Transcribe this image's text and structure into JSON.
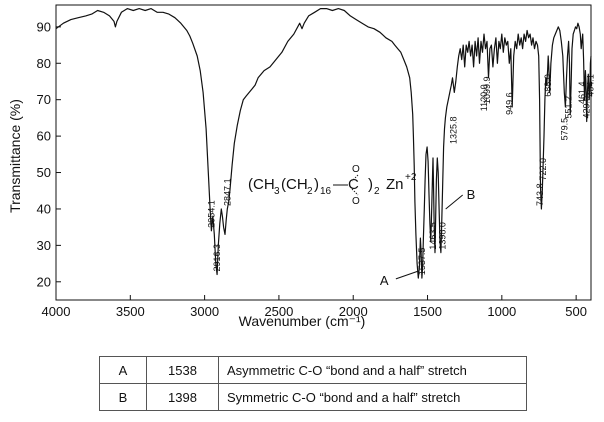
{
  "chart_data": {
    "type": "line",
    "xlabel": "Wavenumber (cm⁻¹)",
    "ylabel": "Transmittance (%)",
    "xlim": [
      4000,
      400
    ],
    "ylim": [
      15,
      96
    ],
    "x_ticks": [
      4000,
      3500,
      3000,
      2500,
      2000,
      1500,
      1000,
      500
    ],
    "y_ticks": [
      20,
      30,
      40,
      50,
      60,
      70,
      80,
      90
    ],
    "grid": false,
    "series": [
      {
        "x": [
          4000,
          3950,
          3900,
          3850,
          3800,
          3760,
          3720,
          3680,
          3640,
          3610,
          3600,
          3590,
          3560,
          3520,
          3480,
          3440,
          3400,
          3360,
          3320,
          3280,
          3240,
          3200,
          3160,
          3120,
          3100,
          3080,
          3050,
          3030,
          3010,
          2990,
          2975,
          2962,
          2954,
          2945,
          2935,
          2925,
          2916,
          2908,
          2898,
          2888,
          2880,
          2872,
          2863,
          2855,
          2847,
          2838,
          2830,
          2815,
          2800,
          2780,
          2760,
          2740,
          2720,
          2700,
          2680,
          2660,
          2640,
          2600,
          2560,
          2520,
          2480,
          2440,
          2400,
          2360,
          2345,
          2330,
          2300,
          2260,
          2220,
          2180,
          2140,
          2100,
          2060,
          2020,
          1980,
          1940,
          1900,
          1860,
          1820,
          1780,
          1740,
          1720,
          1700,
          1680,
          1660,
          1640,
          1620,
          1610,
          1600,
          1595,
          1590,
          1585,
          1578,
          1570,
          1562,
          1555,
          1548,
          1543,
          1538,
          1533,
          1528,
          1522,
          1516,
          1510,
          1503,
          1496,
          1490,
          1484,
          1478,
          1472,
          1466,
          1463,
          1460,
          1455,
          1450,
          1445,
          1440,
          1434,
          1428,
          1422,
          1416,
          1410,
          1404,
          1398,
          1392,
          1386,
          1380,
          1370,
          1360,
          1350,
          1340,
          1332,
          1326,
          1320,
          1310,
          1300,
          1290,
          1280,
          1270,
          1260,
          1250,
          1240,
          1230,
          1220,
          1210,
          1200,
          1190,
          1180,
          1170,
          1160,
          1150,
          1140,
          1130,
          1120,
          1110,
          1100,
          1090,
          1080,
          1070,
          1060,
          1050,
          1040,
          1030,
          1020,
          1010,
          1000,
          990,
          980,
          970,
          960,
          950,
          940,
          930,
          920,
          910,
          900,
          890,
          880,
          870,
          860,
          850,
          840,
          830,
          820,
          810,
          800,
          790,
          780,
          770,
          760,
          752,
          746,
          740,
          734,
          728,
          722,
          716,
          710,
          704,
          698,
          692,
          688,
          684,
          678,
          670,
          660,
          650,
          640,
          630,
          620,
          610,
          600,
          590,
          580,
          572,
          565,
          558,
          551,
          545,
          540,
          534,
          528,
          520,
          512,
          504,
          496,
          488,
          480,
          472,
          466,
          461,
          456,
          450,
          444,
          438,
          434,
          429,
          424,
          418,
          412,
          406,
          404,
          400
        ],
        "y": [
          89.5,
          91,
          92,
          92.5,
          93,
          93.5,
          94.5,
          94,
          93,
          91.5,
          90,
          91.5,
          94,
          95,
          94.5,
          95,
          94.5,
          95,
          94,
          94,
          93.5,
          92.5,
          91,
          89,
          87.5,
          85.5,
          82,
          78,
          72,
          62,
          50,
          39,
          34,
          38,
          33,
          25,
          22,
          30,
          36,
          40,
          38,
          35,
          33,
          37,
          40,
          42,
          45,
          52,
          58,
          63,
          67,
          70,
          71,
          72,
          73,
          74,
          76,
          78,
          79,
          81,
          83,
          86,
          88,
          91,
          89.5,
          91,
          93,
          94,
          95,
          95,
          94.5,
          95,
          94.5,
          93,
          92,
          91,
          90,
          89.5,
          88.5,
          87,
          86,
          85,
          84,
          83,
          81,
          79,
          76,
          72,
          66,
          60,
          52,
          42,
          33,
          25,
          21,
          24,
          32,
          28,
          21,
          24,
          32,
          40,
          48,
          55,
          57,
          53,
          44,
          36,
          31,
          40,
          50,
          54,
          47,
          35,
          28,
          38,
          48,
          54,
          50,
          40,
          31,
          28,
          37,
          47,
          57,
          62,
          65,
          68,
          70,
          72,
          74,
          76,
          74,
          72,
          75,
          79,
          82,
          84,
          81,
          85,
          79,
          85,
          83,
          86,
          82,
          85,
          79,
          86,
          82,
          87,
          80,
          86,
          83,
          88,
          84,
          86,
          76,
          84,
          85,
          79,
          84,
          87,
          80,
          86,
          84,
          88,
          83,
          87,
          85,
          86,
          80,
          84,
          68,
          82,
          86,
          84,
          88,
          85,
          87,
          84,
          88,
          86,
          89,
          87,
          88,
          85,
          87,
          84,
          86,
          85,
          82,
          70,
          46,
          40,
          45,
          52,
          60,
          70,
          76,
          74,
          78,
          82,
          79,
          72,
          80,
          85,
          87,
          88,
          89,
          90,
          89,
          86,
          82,
          72,
          68,
          76,
          82,
          86,
          80,
          66,
          74,
          84,
          88,
          89,
          90,
          89.5,
          91,
          90,
          88,
          84,
          86,
          88,
          81,
          70,
          78,
          75,
          64,
          72,
          77,
          70,
          75,
          80,
          82
        ]
      }
    ],
    "peak_labels": [
      "2954.1",
      "2916.3",
      "2847.1",
      "1537.5",
      "1463.5",
      "1398.0",
      "1325.8",
      "1120.0",
      "1099.9",
      "949.6",
      "743.8",
      "722.0",
      "688.0",
      "579.5",
      "551.2",
      "461.4",
      "429.0",
      "404.1"
    ],
    "peak_positions": [
      {
        "x": 2954.1,
        "y": 34
      },
      {
        "x": 2916.3,
        "y": 22
      },
      {
        "x": 2847.1,
        "y": 40
      },
      {
        "x": 1537.5,
        "y": 21
      },
      {
        "x": 1463.5,
        "y": 28
      },
      {
        "x": 1398.0,
        "y": 28
      },
      {
        "x": 1325.8,
        "y": 57
      },
      {
        "x": 1120.0,
        "y": 66
      },
      {
        "x": 1099.9,
        "y": 68
      },
      {
        "x": 949.6,
        "y": 65
      },
      {
        "x": 743.8,
        "y": 40
      },
      {
        "x": 722.0,
        "y": 47
      },
      {
        "x": 688.0,
        "y": 70
      },
      {
        "x": 579.5,
        "y": 58
      },
      {
        "x": 551.2,
        "y": 64
      },
      {
        "x": 461.4,
        "y": 68
      },
      {
        "x": 429.0,
        "y": 64
      },
      {
        "x": 404.1,
        "y": 70
      }
    ],
    "annotations": [
      {
        "label": "A",
        "x": 1538,
        "y": 21
      },
      {
        "label": "B",
        "x": 1398,
        "y": 28
      }
    ],
    "formula": {
      "p1": "(CH",
      "s1": "3",
      "p2": "(CH",
      "s2": "2",
      "p3": ")",
      "s3": "16",
      "p4": "—C",
      "o_top": "O",
      "o_bottom": "O",
      "p5": ")",
      "s5": "2",
      "p6": "Zn",
      "sup": "+2"
    }
  },
  "legend_table": {
    "rows": [
      {
        "label": "A",
        "value": "1538",
        "description": "Asymmetric C-O “bond and a half” stretch"
      },
      {
        "label": "B",
        "value": "1398",
        "description": "Symmetric C-O “bond and a half” stretch"
      }
    ]
  }
}
